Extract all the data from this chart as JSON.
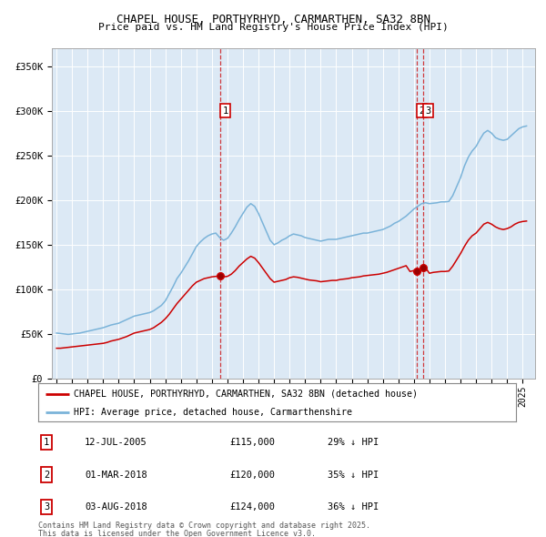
{
  "title1": "CHAPEL HOUSE, PORTHYRHYD, CARMARTHEN, SA32 8BN",
  "title2": "Price paid vs. HM Land Registry's House Price Index (HPI)",
  "legend_label_red": "CHAPEL HOUSE, PORTHYRHYD, CARMARTHEN, SA32 8BN (detached house)",
  "legend_label_blue": "HPI: Average price, detached house, Carmarthenshire",
  "footer1": "Contains HM Land Registry data © Crown copyright and database right 2025.",
  "footer2": "This data is licensed under the Open Government Licence v3.0.",
  "transactions": [
    {
      "label": "1",
      "date": "12-JUL-2005",
      "price": 115000,
      "pct": "29%",
      "direction": "↓"
    },
    {
      "label": "2",
      "date": "01-MAR-2018",
      "price": 120000,
      "pct": "35%",
      "direction": "↓"
    },
    {
      "label": "3",
      "date": "03-AUG-2018",
      "price": 124000,
      "pct": "36%",
      "direction": "↓"
    }
  ],
  "yticks": [
    0,
    50000,
    100000,
    150000,
    200000,
    250000,
    300000,
    350000
  ],
  "ytick_labels": [
    "£0",
    "£50K",
    "£100K",
    "£150K",
    "£200K",
    "£250K",
    "£300K",
    "£350K"
  ],
  "ylim": [
    0,
    370000
  ],
  "bg_color": "#dce9f5",
  "grid_color": "#ffffff",
  "hpi_color": "#7ab3d9",
  "property_color": "#cc0000",
  "vline1_x": 2005.53,
  "vline2_x": 2018.17,
  "vline3_x": 2018.58,
  "xlim": [
    1994.7,
    2025.8
  ],
  "hpi_data": [
    [
      1995.0,
      51000
    ],
    [
      1995.25,
      50500
    ],
    [
      1995.5,
      50000
    ],
    [
      1995.75,
      49500
    ],
    [
      1996.0,
      50000
    ],
    [
      1996.25,
      50500
    ],
    [
      1996.5,
      51000
    ],
    [
      1996.75,
      52000
    ],
    [
      1997.0,
      53000
    ],
    [
      1997.25,
      54000
    ],
    [
      1997.5,
      55000
    ],
    [
      1997.75,
      56000
    ],
    [
      1998.0,
      57000
    ],
    [
      1998.25,
      58500
    ],
    [
      1998.5,
      60000
    ],
    [
      1998.75,
      61000
    ],
    [
      1999.0,
      62000
    ],
    [
      1999.25,
      64000
    ],
    [
      1999.5,
      66000
    ],
    [
      1999.75,
      68000
    ],
    [
      2000.0,
      70000
    ],
    [
      2000.25,
      71000
    ],
    [
      2000.5,
      72000
    ],
    [
      2000.75,
      73000
    ],
    [
      2001.0,
      74000
    ],
    [
      2001.25,
      76000
    ],
    [
      2001.5,
      79000
    ],
    [
      2001.75,
      82000
    ],
    [
      2002.0,
      87000
    ],
    [
      2002.25,
      95000
    ],
    [
      2002.5,
      103000
    ],
    [
      2002.75,
      112000
    ],
    [
      2003.0,
      118000
    ],
    [
      2003.25,
      125000
    ],
    [
      2003.5,
      132000
    ],
    [
      2003.75,
      140000
    ],
    [
      2004.0,
      148000
    ],
    [
      2004.25,
      153000
    ],
    [
      2004.5,
      157000
    ],
    [
      2004.75,
      160000
    ],
    [
      2005.0,
      162000
    ],
    [
      2005.25,
      163000
    ],
    [
      2005.5,
      158000
    ],
    [
      2005.75,
      155000
    ],
    [
      2006.0,
      157000
    ],
    [
      2006.25,
      163000
    ],
    [
      2006.5,
      170000
    ],
    [
      2006.75,
      178000
    ],
    [
      2007.0,
      185000
    ],
    [
      2007.25,
      192000
    ],
    [
      2007.5,
      196000
    ],
    [
      2007.75,
      193000
    ],
    [
      2008.0,
      185000
    ],
    [
      2008.25,
      175000
    ],
    [
      2008.5,
      165000
    ],
    [
      2008.75,
      155000
    ],
    [
      2009.0,
      150000
    ],
    [
      2009.25,
      152000
    ],
    [
      2009.5,
      155000
    ],
    [
      2009.75,
      157000
    ],
    [
      2010.0,
      160000
    ],
    [
      2010.25,
      162000
    ],
    [
      2010.5,
      161000
    ],
    [
      2010.75,
      160000
    ],
    [
      2011.0,
      158000
    ],
    [
      2011.25,
      157000
    ],
    [
      2011.5,
      156000
    ],
    [
      2011.75,
      155000
    ],
    [
      2012.0,
      154000
    ],
    [
      2012.25,
      155000
    ],
    [
      2012.5,
      156000
    ],
    [
      2012.75,
      156000
    ],
    [
      2013.0,
      156000
    ],
    [
      2013.25,
      157000
    ],
    [
      2013.5,
      158000
    ],
    [
      2013.75,
      159000
    ],
    [
      2014.0,
      160000
    ],
    [
      2014.25,
      161000
    ],
    [
      2014.5,
      162000
    ],
    [
      2014.75,
      163000
    ],
    [
      2015.0,
      163000
    ],
    [
      2015.25,
      164000
    ],
    [
      2015.5,
      165000
    ],
    [
      2015.75,
      166000
    ],
    [
      2016.0,
      167000
    ],
    [
      2016.25,
      169000
    ],
    [
      2016.5,
      171000
    ],
    [
      2016.75,
      174000
    ],
    [
      2017.0,
      176000
    ],
    [
      2017.25,
      179000
    ],
    [
      2017.5,
      182000
    ],
    [
      2017.75,
      186000
    ],
    [
      2018.0,
      190000
    ],
    [
      2018.25,
      193000
    ],
    [
      2018.5,
      196000
    ],
    [
      2018.75,
      197000
    ],
    [
      2019.0,
      196000
    ],
    [
      2019.25,
      196500
    ],
    [
      2019.5,
      197000
    ],
    [
      2019.75,
      198000
    ],
    [
      2020.0,
      198000
    ],
    [
      2020.25,
      198500
    ],
    [
      2020.5,
      205000
    ],
    [
      2020.75,
      215000
    ],
    [
      2021.0,
      225000
    ],
    [
      2021.25,
      238000
    ],
    [
      2021.5,
      248000
    ],
    [
      2021.75,
      255000
    ],
    [
      2022.0,
      260000
    ],
    [
      2022.25,
      268000
    ],
    [
      2022.5,
      275000
    ],
    [
      2022.75,
      278000
    ],
    [
      2023.0,
      275000
    ],
    [
      2023.25,
      270000
    ],
    [
      2023.5,
      268000
    ],
    [
      2023.75,
      267000
    ],
    [
      2024.0,
      268000
    ],
    [
      2024.25,
      272000
    ],
    [
      2024.5,
      276000
    ],
    [
      2024.75,
      280000
    ],
    [
      2025.0,
      282000
    ],
    [
      2025.25,
      283000
    ]
  ],
  "property_data": [
    [
      1995.0,
      34000
    ],
    [
      1995.25,
      34000
    ],
    [
      1995.5,
      34500
    ],
    [
      1995.75,
      35000
    ],
    [
      1996.0,
      35500
    ],
    [
      1996.25,
      36000
    ],
    [
      1996.5,
      36500
    ],
    [
      1996.75,
      37000
    ],
    [
      1997.0,
      37500
    ],
    [
      1997.25,
      38000
    ],
    [
      1997.5,
      38500
    ],
    [
      1997.75,
      39000
    ],
    [
      1998.0,
      39500
    ],
    [
      1998.25,
      40500
    ],
    [
      1998.5,
      42000
    ],
    [
      1998.75,
      43000
    ],
    [
      1999.0,
      44000
    ],
    [
      1999.25,
      45500
    ],
    [
      1999.5,
      47000
    ],
    [
      1999.75,
      49000
    ],
    [
      2000.0,
      51000
    ],
    [
      2000.25,
      52000
    ],
    [
      2000.5,
      53000
    ],
    [
      2000.75,
      54000
    ],
    [
      2001.0,
      55000
    ],
    [
      2001.25,
      57000
    ],
    [
      2001.5,
      60000
    ],
    [
      2001.75,
      63000
    ],
    [
      2002.0,
      67000
    ],
    [
      2002.25,
      72000
    ],
    [
      2002.5,
      78000
    ],
    [
      2002.75,
      84000
    ],
    [
      2003.0,
      89000
    ],
    [
      2003.25,
      94000
    ],
    [
      2003.5,
      99000
    ],
    [
      2003.75,
      104000
    ],
    [
      2004.0,
      108000
    ],
    [
      2004.25,
      110000
    ],
    [
      2004.5,
      112000
    ],
    [
      2004.75,
      113000
    ],
    [
      2005.0,
      114000
    ],
    [
      2005.25,
      114500
    ],
    [
      2005.5,
      115000
    ],
    [
      2005.75,
      114000
    ],
    [
      2006.0,
      114500
    ],
    [
      2006.25,
      117000
    ],
    [
      2006.5,
      121000
    ],
    [
      2006.75,
      126000
    ],
    [
      2007.0,
      130000
    ],
    [
      2007.25,
      134000
    ],
    [
      2007.5,
      137000
    ],
    [
      2007.75,
      135000
    ],
    [
      2008.0,
      130000
    ],
    [
      2008.25,
      124000
    ],
    [
      2008.5,
      118000
    ],
    [
      2008.75,
      112000
    ],
    [
      2009.0,
      108000
    ],
    [
      2009.25,
      109000
    ],
    [
      2009.5,
      110000
    ],
    [
      2009.75,
      111000
    ],
    [
      2010.0,
      113000
    ],
    [
      2010.25,
      114000
    ],
    [
      2010.5,
      113500
    ],
    [
      2010.75,
      112500
    ],
    [
      2011.0,
      111500
    ],
    [
      2011.25,
      110500
    ],
    [
      2011.5,
      110000
    ],
    [
      2011.75,
      109500
    ],
    [
      2012.0,
      108500
    ],
    [
      2012.25,
      109000
    ],
    [
      2012.5,
      109500
    ],
    [
      2012.75,
      110000
    ],
    [
      2013.0,
      110000
    ],
    [
      2013.25,
      111000
    ],
    [
      2013.5,
      111500
    ],
    [
      2013.75,
      112000
    ],
    [
      2014.0,
      113000
    ],
    [
      2014.25,
      113500
    ],
    [
      2014.5,
      114000
    ],
    [
      2014.75,
      115000
    ],
    [
      2015.0,
      115500
    ],
    [
      2015.25,
      116000
    ],
    [
      2015.5,
      116500
    ],
    [
      2015.75,
      117000
    ],
    [
      2016.0,
      118000
    ],
    [
      2016.25,
      119000
    ],
    [
      2016.5,
      120500
    ],
    [
      2016.75,
      122000
    ],
    [
      2017.0,
      123500
    ],
    [
      2017.25,
      125000
    ],
    [
      2017.5,
      126500
    ],
    [
      2017.75,
      120000
    ],
    [
      2018.0,
      121000
    ],
    [
      2018.17,
      120000
    ],
    [
      2018.25,
      120500
    ],
    [
      2018.5,
      124000
    ],
    [
      2018.58,
      124000
    ],
    [
      2018.75,
      124000
    ],
    [
      2019.0,
      118000
    ],
    [
      2019.25,
      119000
    ],
    [
      2019.5,
      119500
    ],
    [
      2019.75,
      120000
    ],
    [
      2020.0,
      120000
    ],
    [
      2020.25,
      120500
    ],
    [
      2020.5,
      126000
    ],
    [
      2020.75,
      133000
    ],
    [
      2021.0,
      140000
    ],
    [
      2021.25,
      148000
    ],
    [
      2021.5,
      155000
    ],
    [
      2021.75,
      160000
    ],
    [
      2022.0,
      163000
    ],
    [
      2022.25,
      168000
    ],
    [
      2022.5,
      173000
    ],
    [
      2022.75,
      175000
    ],
    [
      2023.0,
      173000
    ],
    [
      2023.25,
      170000
    ],
    [
      2023.5,
      168000
    ],
    [
      2023.75,
      167000
    ],
    [
      2024.0,
      168000
    ],
    [
      2024.25,
      170000
    ],
    [
      2024.5,
      173000
    ],
    [
      2024.75,
      175000
    ],
    [
      2025.0,
      176000
    ],
    [
      2025.25,
      176500
    ]
  ]
}
